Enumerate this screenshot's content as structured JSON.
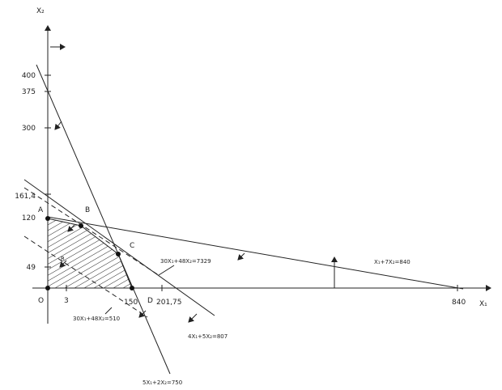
{
  "axes": {
    "x_label": "X₁",
    "y_label": "X₂"
  },
  "y_ticks": [
    "400",
    "375",
    "300",
    "161,4",
    "120",
    "49"
  ],
  "x_ticks": [
    "O",
    "3",
    "150",
    "201,75",
    "840"
  ],
  "points": {
    "A": "A",
    "B": "B",
    "C": "C",
    "D": "D"
  },
  "region_label": "R",
  "line_labels": [
    "X₁+7X₂=840",
    "30X₁+48X₂=7329",
    "30X₁+48X₂=510",
    "4X₁+5X₂=807",
    "5X₁+2X₂=750"
  ]
}
